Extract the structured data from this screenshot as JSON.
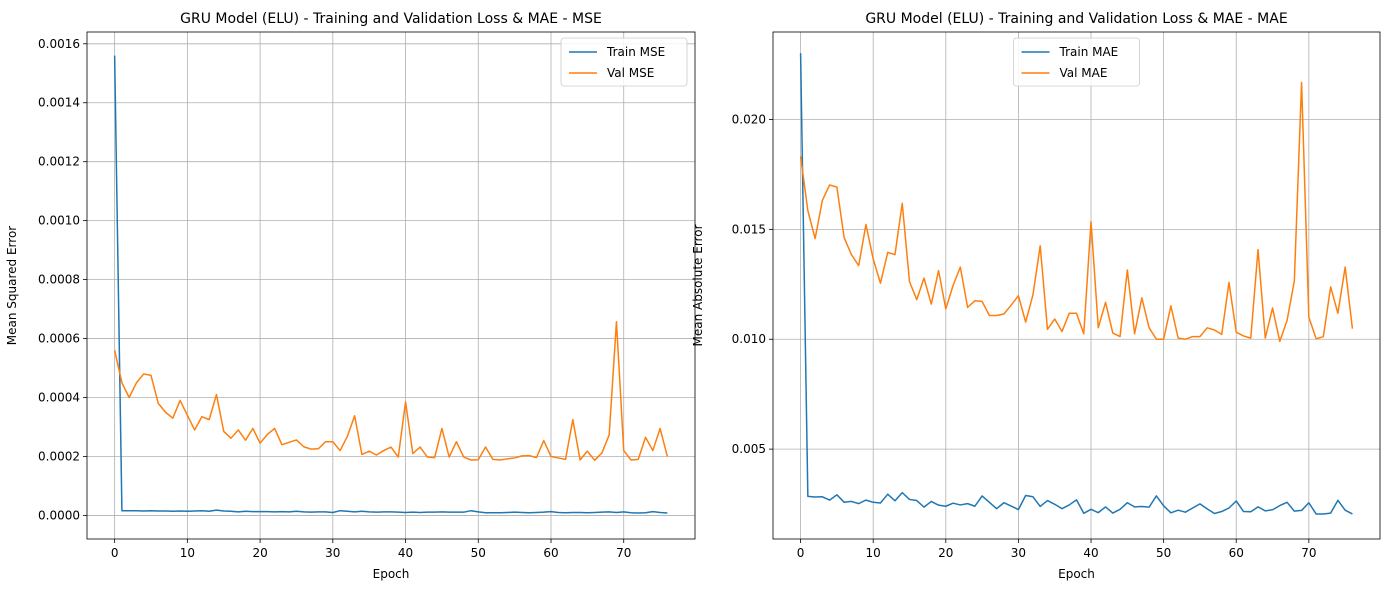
{
  "chart_data": [
    {
      "type": "line",
      "title": "GRU Model (ELU) - Training and Validation Loss & MAE - MSE",
      "xlabel": "Epoch",
      "ylabel": "Mean Squared Error",
      "xlim": [
        -3.8,
        79.8
      ],
      "ylim": [
        -8e-05,
        0.00164
      ],
      "xticks": [
        0,
        10,
        20,
        30,
        40,
        50,
        60,
        70
      ],
      "yticks": [
        0.0,
        0.0002,
        0.0004,
        0.0006,
        0.0008,
        0.001,
        0.0012,
        0.0014,
        0.0016
      ],
      "ytick_labels": [
        "0.0000",
        "0.0002",
        "0.0004",
        "0.0006",
        "0.0008",
        "0.0010",
        "0.0012",
        "0.0014",
        "0.0016"
      ],
      "grid": true,
      "legend_position": "top-right",
      "series": [
        {
          "name": "Train MSE",
          "color": "#1f77b4",
          "values": [
            0.00156,
            1.6e-05,
            1.6e-05,
            1.6e-05,
            1.5e-05,
            1.6e-05,
            1.5e-05,
            1.5e-05,
            1.4e-05,
            1.5e-05,
            1.4e-05,
            1.5e-05,
            1.6e-05,
            1.4e-05,
            1.8e-05,
            1.5e-05,
            1.4e-05,
            1.2e-05,
            1.4e-05,
            1.3e-05,
            1.3e-05,
            1.3e-05,
            1.2e-05,
            1.3e-05,
            1.2e-05,
            1.4e-05,
            1.2e-05,
            1.1e-05,
            1.2e-05,
            1.2e-05,
            1e-05,
            1.6e-05,
            1.4e-05,
            1.2e-05,
            1.4e-05,
            1.2e-05,
            1.1e-05,
            1.2e-05,
            1.2e-05,
            1.1e-05,
            1e-05,
            1.1e-05,
            1e-05,
            1.1e-05,
            1.1e-05,
            1.2e-05,
            1.1e-05,
            1.1e-05,
            1.1e-05,
            1.6e-05,
            1.2e-05,
            9e-06,
            9e-06,
            9e-06,
            1e-05,
            1.1e-05,
            1e-05,
            9e-06,
            1e-05,
            1.1e-05,
            1.3e-05,
            1e-05,
            9e-06,
            1e-05,
            1e-05,
            9e-06,
            1e-05,
            1.1e-05,
            1.2e-05,
            1e-05,
            1.2e-05,
            9e-06,
            8e-06,
            9e-06,
            1.3e-05,
            1e-05,
            8e-06
          ]
        },
        {
          "name": "Val MSE",
          "color": "#ff7f0e",
          "values": [
            0.00056,
            0.00045,
            0.0004,
            0.00045,
            0.00048,
            0.000475,
            0.00038,
            0.00035,
            0.00033,
            0.00039,
            0.00034,
            0.00029,
            0.000335,
            0.000325,
            0.00041,
            0.000285,
            0.000262,
            0.00029,
            0.000255,
            0.000295,
            0.000245,
            0.000275,
            0.000295,
            0.00024,
            0.000248,
            0.000256,
            0.000233,
            0.000225,
            0.000226,
            0.00025,
            0.00025,
            0.00022,
            0.000268,
            0.000338,
            0.000207,
            0.000218,
            0.000205,
            0.00022,
            0.000232,
            0.000198,
            0.000385,
            0.00021,
            0.000232,
            0.000198,
            0.000196,
            0.000295,
            0.000198,
            0.00025,
            0.000198,
            0.000188,
            0.000189,
            0.000232,
            0.00019,
            0.000188,
            0.000192,
            0.000195,
            0.000202,
            0.000203,
            0.000196,
            0.000254,
            0.0002,
            0.000195,
            0.00019,
            0.000325,
            0.000188,
            0.000218,
            0.000187,
            0.000212,
            0.000273,
            0.000657,
            0.00022,
            0.000188,
            0.00019,
            0.000265,
            0.00022,
            0.000295,
            0.0002
          ]
        }
      ]
    },
    {
      "type": "line",
      "title": "GRU Model (ELU) - Training and Validation Loss & MAE - MAE",
      "xlabel": "Epoch",
      "ylabel": "Mean Absolute Error",
      "xlim": [
        -3.8,
        79.8
      ],
      "ylim": [
        0.00091,
        0.02398
      ],
      "xticks": [
        0,
        10,
        20,
        30,
        40,
        50,
        60,
        70
      ],
      "yticks": [
        0.005,
        0.01,
        0.015,
        0.02
      ],
      "ytick_labels": [
        "0.005",
        "0.010",
        "0.015",
        "0.020"
      ],
      "grid": true,
      "legend_position": "top-center",
      "series": [
        {
          "name": "Train MAE",
          "color": "#1f77b4",
          "values": [
            0.02302,
            0.00285,
            0.00282,
            0.00283,
            0.00268,
            0.00292,
            0.00258,
            0.00262,
            0.00252,
            0.00268,
            0.00258,
            0.00255,
            0.00295,
            0.00265,
            0.00302,
            0.00271,
            0.00266,
            0.00236,
            0.00262,
            0.00245,
            0.0024,
            0.00254,
            0.00246,
            0.00252,
            0.0024,
            0.00287,
            0.00258,
            0.00229,
            0.00256,
            0.00241,
            0.00225,
            0.00289,
            0.00283,
            0.00239,
            0.00266,
            0.00249,
            0.00229,
            0.00246,
            0.00269,
            0.00208,
            0.00226,
            0.00211,
            0.00237,
            0.00209,
            0.00226,
            0.00256,
            0.00237,
            0.00239,
            0.00236,
            0.00287,
            0.00242,
            0.0021,
            0.00222,
            0.00213,
            0.00232,
            0.00251,
            0.00228,
            0.00207,
            0.00216,
            0.00232,
            0.00264,
            0.00216,
            0.00215,
            0.00237,
            0.00219,
            0.00224,
            0.00243,
            0.00258,
            0.00218,
            0.00221,
            0.00256,
            0.00205,
            0.00205,
            0.00209,
            0.00267,
            0.00222,
            0.00205
          ]
        },
        {
          "name": "Val MAE",
          "color": "#ff7f0e",
          "values": [
            0.01832,
            0.01585,
            0.01458,
            0.01632,
            0.01702,
            0.01692,
            0.01462,
            0.01385,
            0.01335,
            0.01522,
            0.01365,
            0.01255,
            0.01395,
            0.01385,
            0.01618,
            0.01262,
            0.0118,
            0.01278,
            0.0116,
            0.01312,
            0.01138,
            0.01245,
            0.01328,
            0.01145,
            0.01175,
            0.01172,
            0.01108,
            0.01108,
            0.01115,
            0.01155,
            0.01198,
            0.01078,
            0.01202,
            0.01425,
            0.01045,
            0.01092,
            0.01035,
            0.01118,
            0.01118,
            0.01025,
            0.01535,
            0.01052,
            0.01168,
            0.01028,
            0.01012,
            0.01315,
            0.01025,
            0.01188,
            0.01052,
            0.01,
            0.01,
            0.01152,
            0.01005,
            0.01,
            0.01012,
            0.01012,
            0.01052,
            0.01042,
            0.01022,
            0.01258,
            0.01032,
            0.01015,
            0.01005,
            0.01408,
            0.01005,
            0.01142,
            0.0099,
            0.01085,
            0.01265,
            0.02168,
            0.011,
            0.01002,
            0.01012,
            0.01238,
            0.01118,
            0.01328,
            0.01048
          ]
        }
      ]
    }
  ]
}
